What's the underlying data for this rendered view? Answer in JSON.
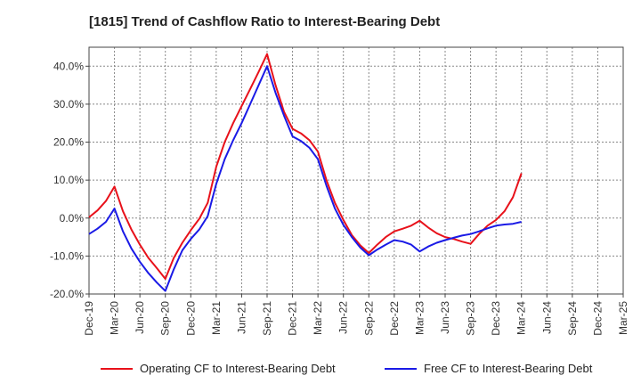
{
  "title": "[1815]  Trend of Cashflow Ratio to Interest-Bearing Debt",
  "colors": {
    "operating": "#e8111a",
    "free": "#1a1ae6",
    "grid": "#888888",
    "axis": "#444444"
  },
  "chart_data": {
    "type": "line",
    "title": "[1815]  Trend of Cashflow Ratio to Interest-Bearing Debt",
    "xlabel": "",
    "ylabel": "",
    "ylim": [
      -20,
      45
    ],
    "yticks": [
      -20,
      -10,
      0,
      10,
      20,
      30,
      40
    ],
    "ytick_labels": [
      "-20.0%",
      "-10.0%",
      "0.0%",
      "10.0%",
      "20.0%",
      "30.0%",
      "40.0%"
    ],
    "xtick_labels": [
      "Dec-19",
      "Mar-20",
      "Jun-20",
      "Sep-20",
      "Dec-20",
      "Mar-21",
      "Jun-21",
      "Sep-21",
      "Dec-21",
      "Mar-22",
      "Jun-22",
      "Sep-22",
      "Dec-22",
      "Mar-23",
      "Jun-23",
      "Sep-23",
      "Dec-23",
      "Mar-24",
      "Jun-24",
      "Sep-24",
      "Dec-24",
      "Mar-25"
    ],
    "x": [
      "Dec-19",
      "Jan-20",
      "Feb-20",
      "Mar-20",
      "Apr-20",
      "May-20",
      "Jun-20",
      "Jul-20",
      "Aug-20",
      "Sep-20",
      "Oct-20",
      "Nov-20",
      "Dec-20",
      "Jan-21",
      "Feb-21",
      "Mar-21",
      "Apr-21",
      "May-21",
      "Jun-21",
      "Jul-21",
      "Aug-21",
      "Sep-21",
      "Oct-21",
      "Nov-21",
      "Dec-21",
      "Jan-22",
      "Feb-22",
      "Mar-22",
      "Apr-22",
      "May-22",
      "Jun-22",
      "Jul-22",
      "Aug-22",
      "Sep-22",
      "Oct-22",
      "Nov-22",
      "Dec-22",
      "Jan-23",
      "Feb-23",
      "Mar-23",
      "Apr-23",
      "May-23",
      "Jun-23",
      "Jul-23",
      "Aug-23",
      "Sep-23",
      "Oct-23",
      "Nov-23",
      "Dec-23",
      "Jan-24",
      "Feb-24",
      "Mar-24"
    ],
    "series": [
      {
        "name": "Operating CF to Interest-Bearing Debt",
        "color": "#e8111a",
        "values": [
          0.2,
          2.0,
          4.5,
          8.3,
          1.8,
          -3.0,
          -7.0,
          -10.5,
          -13.2,
          -16.0,
          -10.5,
          -6.5,
          -3.2,
          -0.2,
          4.0,
          13.5,
          20.0,
          25.0,
          29.5,
          34.0,
          38.5,
          43.2,
          35.0,
          28.0,
          23.5,
          22.3,
          20.5,
          17.5,
          10.0,
          4.0,
          -0.5,
          -4.5,
          -7.2,
          -9.2,
          -7.0,
          -5.0,
          -3.5,
          -2.8,
          -2.0,
          -0.7,
          -2.5,
          -4.0,
          -5.0,
          -5.5,
          -6.2,
          -6.8,
          -4.2,
          -2.0,
          -0.5,
          1.8,
          5.5,
          11.8
        ]
      },
      {
        "name": "Free CF to Interest-Bearing Debt",
        "color": "#1a1ae6",
        "values": [
          -4.2,
          -2.8,
          -1.0,
          2.5,
          -3.5,
          -8.0,
          -11.5,
          -14.5,
          -17.0,
          -19.2,
          -13.5,
          -8.5,
          -5.5,
          -3.0,
          0.5,
          9.0,
          15.5,
          20.5,
          25.0,
          30.0,
          35.0,
          40.0,
          33.0,
          27.0,
          21.5,
          20.3,
          18.5,
          15.5,
          8.5,
          2.5,
          -1.8,
          -5.0,
          -7.8,
          -9.8,
          -8.3,
          -7.0,
          -5.8,
          -6.2,
          -7.0,
          -8.8,
          -7.5,
          -6.5,
          -5.8,
          -5.2,
          -4.6,
          -4.2,
          -3.5,
          -2.7,
          -2.0,
          -1.7,
          -1.5,
          -1.0
        ]
      }
    ],
    "grid": true,
    "legend": "bottom"
  }
}
